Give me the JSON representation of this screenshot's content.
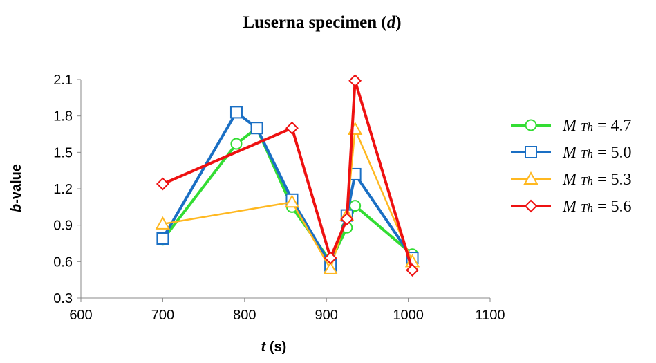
{
  "chart_data": {
    "type": "line",
    "title": "Luserna specimen",
    "title_suffix": "d",
    "xlabel": "t",
    "xlabel_unit": "(s)",
    "ylabel": "b",
    "ylabel_suffix": "-value",
    "xlim": [
      600,
      1100
    ],
    "ylim": [
      0.3,
      2.1
    ],
    "xticks": [
      600,
      700,
      800,
      900,
      1000,
      1100
    ],
    "xtick_labels": [
      "600",
      "700",
      "800",
      "900",
      "1000",
      "1100"
    ],
    "yticks": [
      0.3,
      0.6,
      0.9,
      1.2,
      1.5,
      1.8,
      2.1
    ],
    "ytick_labels": [
      "0.3",
      "0.6",
      "0.9",
      "1.2",
      "1.5",
      "1.8",
      "2.1"
    ],
    "grid": false,
    "legend_position": "right",
    "series": [
      {
        "name": "M Th = 4.7",
        "legend_symbol": "M",
        "legend_sub": "Th",
        "legend_value": "= 4.7",
        "color": "#33dd33",
        "marker": "circle",
        "x": [
          700,
          790,
          815,
          858,
          905,
          925,
          935,
          1005
        ],
        "y": [
          0.78,
          1.57,
          1.7,
          1.05,
          0.6,
          0.88,
          1.06,
          0.66
        ]
      },
      {
        "name": "M Th = 5.0",
        "legend_symbol": "M",
        "legend_sub": "Th",
        "legend_value": "= 5.0",
        "color": "#1a6fc4",
        "marker": "square",
        "x": [
          700,
          790,
          815,
          858,
          905,
          925,
          935,
          1005
        ],
        "y": [
          0.79,
          1.83,
          1.7,
          1.11,
          0.57,
          0.98,
          1.32,
          0.63
        ]
      },
      {
        "name": "M Th = 5.3",
        "legend_symbol": "M",
        "legend_sub": "Th",
        "legend_value": "= 5.3",
        "color": "#ffb820",
        "marker": "triangle",
        "x": [
          700,
          858,
          905,
          925,
          935,
          1005
        ],
        "y": [
          0.91,
          1.09,
          0.54,
          0.98,
          1.69,
          0.6
        ]
      },
      {
        "name": "M Th = 5.6",
        "legend_symbol": "M",
        "legend_sub": "Th",
        "legend_value": "= 5.6",
        "color": "#ee1111",
        "marker": "diamond",
        "x": [
          700,
          858,
          905,
          925,
          935,
          1005
        ],
        "y": [
          1.24,
          1.7,
          0.63,
          0.95,
          2.09,
          0.53
        ]
      }
    ]
  }
}
